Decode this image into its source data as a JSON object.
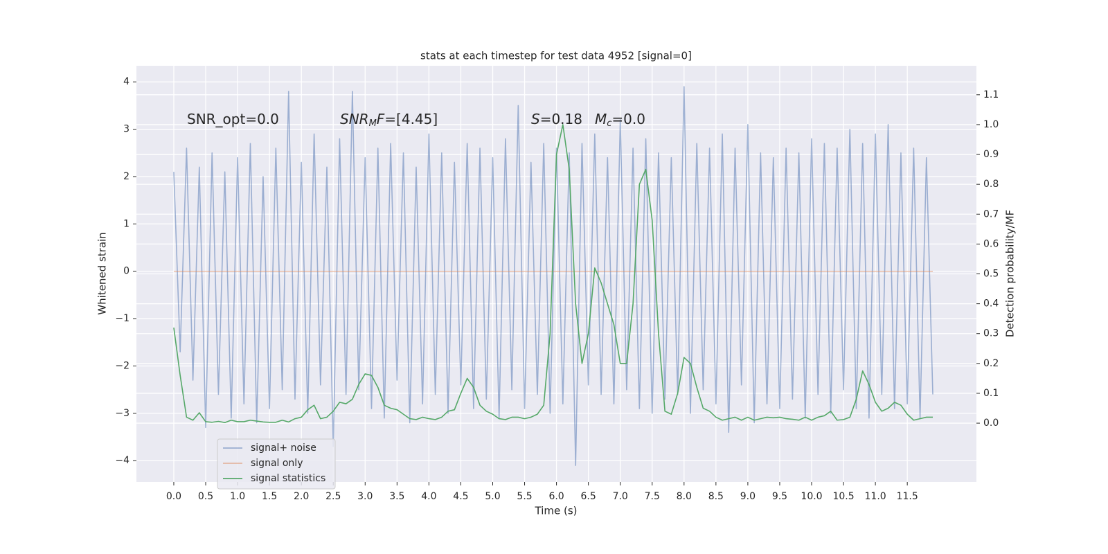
{
  "chart_data": {
    "type": "line",
    "title": "stats at each timestep for test data 4952 [signal=0]",
    "xlabel": "Time (s)",
    "ylabel": "Whitened strain",
    "y2label": "Detection probability/MF",
    "grid": true,
    "legend_loc": "lower left",
    "xlim": [
      -0.586,
      12.584
    ],
    "ylim": [
      -4.45,
      4.34
    ],
    "y2lim": [
      -0.197,
      1.197
    ],
    "xticks": [
      {
        "value": 0,
        "label": "0.0"
      },
      {
        "value": 0.5,
        "label": "0.5"
      },
      {
        "value": 1,
        "label": "1.0"
      },
      {
        "value": 1.5,
        "label": "1.5"
      },
      {
        "value": 2,
        "label": "2.0"
      },
      {
        "value": 2.5,
        "label": "2.5"
      },
      {
        "value": 3,
        "label": "3.0"
      },
      {
        "value": 3.5,
        "label": "3.5"
      },
      {
        "value": 4,
        "label": "4.0"
      },
      {
        "value": 4.5,
        "label": "4.5"
      },
      {
        "value": 5,
        "label": "5.0"
      },
      {
        "value": 5.5,
        "label": "5.5"
      },
      {
        "value": 6,
        "label": "6.0"
      },
      {
        "value": 6.5,
        "label": "6.5"
      },
      {
        "value": 7,
        "label": "7.0"
      },
      {
        "value": 7.5,
        "label": "7.5"
      },
      {
        "value": 8,
        "label": "8.0"
      },
      {
        "value": 8.5,
        "label": "8.5"
      },
      {
        "value": 9,
        "label": "9.0"
      },
      {
        "value": 9.5,
        "label": "9.5"
      },
      {
        "value": 10,
        "label": "10.0"
      },
      {
        "value": 10.5,
        "label": "10.5"
      },
      {
        "value": 11,
        "label": "11.0"
      },
      {
        "value": 11.5,
        "label": "11.5"
      }
    ],
    "yticks": [
      {
        "value": -4,
        "label": "−4"
      },
      {
        "value": -3,
        "label": "−3"
      },
      {
        "value": -2,
        "label": "−2"
      },
      {
        "value": -1,
        "label": "−1"
      },
      0,
      1,
      2,
      3,
      4
    ],
    "y2ticks": [
      {
        "value": 0,
        "label": "0.0"
      },
      {
        "value": 0.1,
        "label": "0.1"
      },
      {
        "value": 0.2,
        "label": "0.2"
      },
      {
        "value": 0.3,
        "label": "0.3"
      },
      {
        "value": 0.4,
        "label": "0.4"
      },
      {
        "value": 0.5,
        "label": "0.5"
      },
      {
        "value": 0.6,
        "label": "0.6"
      },
      {
        "value": 0.7,
        "label": "0.7"
      },
      {
        "value": 0.8,
        "label": "0.8"
      },
      {
        "value": 0.9,
        "label": "0.9"
      },
      {
        "value": 1,
        "label": "1.0"
      },
      {
        "value": 1.1,
        "label": "1.1"
      }
    ],
    "annotations": [
      [
        {
          "text": "SNR_opt=0.0"
        }
      ],
      [
        {
          "text": "SNR",
          "italic": true
        },
        {
          "text": "M",
          "italic": true,
          "sub": true
        },
        {
          "text": "F",
          "italic": true
        },
        {
          "text": "=[4.45]"
        }
      ],
      [
        {
          "text": "S",
          "italic": true
        },
        {
          "text": "=0.18"
        }
      ],
      [
        {
          "text": "M",
          "italic": true
        },
        {
          "text": "c",
          "italic": true,
          "sub": true
        },
        {
          "text": "=0.0"
        }
      ]
    ],
    "x": [
      0,
      0.1,
      0.2,
      0.3,
      0.4,
      0.5,
      0.6,
      0.7,
      0.8,
      0.9,
      1,
      1.1,
      1.2,
      1.3,
      1.4,
      1.5,
      1.6,
      1.7,
      1.8,
      1.9,
      2,
      2.1,
      2.2,
      2.3,
      2.4,
      2.5,
      2.6,
      2.7,
      2.8,
      2.9,
      3,
      3.1,
      3.2,
      3.3,
      3.4,
      3.5,
      3.6,
      3.7,
      3.8,
      3.9,
      4,
      4.1,
      4.2,
      4.3,
      4.4,
      4.5,
      4.6,
      4.7,
      4.8,
      4.9,
      5,
      5.1,
      5.2,
      5.3,
      5.4,
      5.5,
      5.6,
      5.7,
      5.8,
      5.9,
      6,
      6.1,
      6.2,
      6.3,
      6.4,
      6.5,
      6.6,
      6.7,
      6.8,
      6.9,
      7,
      7.1,
      7.2,
      7.3,
      7.4,
      7.5,
      7.6,
      7.7,
      7.8,
      7.9,
      8,
      8.1,
      8.2,
      8.3,
      8.4,
      8.5,
      8.6,
      8.7,
      8.8,
      8.9,
      9,
      9.1,
      9.2,
      9.3,
      9.4,
      9.5,
      9.6,
      9.7,
      9.8,
      9.9,
      10,
      10.1,
      10.2,
      10.3,
      10.4,
      10.5,
      10.6,
      10.7,
      10.8,
      10.9,
      11,
      11.1,
      11.2,
      11.3,
      11.4,
      11.5,
      11.6,
      11.7,
      11.8,
      11.9
    ],
    "series": [
      {
        "name": "signal+ noise",
        "color": "#4c72b0",
        "alpha": 0.5,
        "values": [
          2.1,
          -1.7,
          2.6,
          -2.3,
          2.2,
          -3.3,
          2.5,
          -2.6,
          2.1,
          -3.1,
          2.4,
          -2.8,
          2.7,
          -3.2,
          2.0,
          -2.9,
          2.6,
          -2.5,
          3.8,
          -2.7,
          2.3,
          -3.0,
          2.9,
          -2.4,
          2.2,
          -3.7,
          2.8,
          -2.6,
          3.8,
          -2.5,
          2.4,
          -2.9,
          2.6,
          -3.1,
          2.7,
          -2.3,
          2.5,
          -3.2,
          2.2,
          -2.8,
          2.9,
          -2.6,
          2.5,
          -3.0,
          2.3,
          -2.4,
          2.7,
          -2.9,
          2.6,
          -2.7,
          2.4,
          -3.1,
          2.8,
          -2.5,
          3.5,
          -2.9,
          2.3,
          -2.6,
          2.7,
          -3.0,
          2.6,
          -2.8,
          2.5,
          -4.1,
          2.7,
          -2.4,
          2.9,
          -2.6,
          2.4,
          -2.8,
          3.2,
          -2.5,
          2.6,
          -2.9,
          2.8,
          -3.0,
          2.5,
          -2.7,
          2.4,
          -2.6,
          3.9,
          -3.0,
          2.7,
          -2.5,
          2.6,
          -2.8,
          2.9,
          -3.4,
          2.6,
          -2.4,
          3.1,
          -3.2,
          2.5,
          -2.8,
          2.4,
          -2.9,
          2.6,
          -2.7,
          2.5,
          -3.1,
          2.8,
          -2.6,
          2.7,
          -3.0,
          2.6,
          -2.5,
          3.0,
          -2.9,
          2.7,
          -3.1,
          2.9,
          -2.6,
          3.1,
          -2.9,
          2.5,
          -2.8,
          2.6,
          -3.1,
          2.4,
          -2.6
        ]
      },
      {
        "name": "signal only",
        "color": "#dd8452",
        "alpha": 0.5,
        "x": [
          0,
          11.9
        ],
        "values": [
          0,
          0
        ]
      },
      {
        "name": "signal statistics",
        "color": "#55a868",
        "alpha": 1,
        "axis": "y2",
        "values": [
          0.32,
          0.16,
          0.02,
          0.01,
          0.035,
          0.005,
          0.003,
          0.006,
          0.002,
          0.01,
          0.005,
          0.005,
          0.01,
          0.007,
          0.004,
          0.003,
          0.003,
          0.01,
          0.004,
          0.015,
          0.02,
          0.045,
          0.06,
          0.015,
          0.02,
          0.04,
          0.07,
          0.065,
          0.08,
          0.13,
          0.165,
          0.16,
          0.12,
          0.06,
          0.05,
          0.045,
          0.03,
          0.015,
          0.012,
          0.02,
          0.015,
          0.012,
          0.02,
          0.04,
          0.045,
          0.1,
          0.15,
          0.12,
          0.06,
          0.04,
          0.03,
          0.015,
          0.012,
          0.02,
          0.02,
          0.015,
          0.02,
          0.03,
          0.06,
          0.3,
          0.9,
          1.0,
          0.85,
          0.4,
          0.2,
          0.3,
          0.52,
          0.47,
          0.4,
          0.33,
          0.2,
          0.2,
          0.4,
          0.8,
          0.85,
          0.68,
          0.3,
          0.04,
          0.03,
          0.1,
          0.22,
          0.2,
          0.12,
          0.05,
          0.04,
          0.02,
          0.01,
          0.015,
          0.02,
          0.01,
          0.02,
          0.01,
          0.015,
          0.02,
          0.018,
          0.02,
          0.015,
          0.013,
          0.01,
          0.02,
          0.01,
          0.02,
          0.025,
          0.04,
          0.01,
          0.012,
          0.02,
          0.08,
          0.175,
          0.13,
          0.07,
          0.04,
          0.05,
          0.07,
          0.06,
          0.03,
          0.01,
          0.015,
          0.02,
          0.02
        ]
      }
    ]
  }
}
